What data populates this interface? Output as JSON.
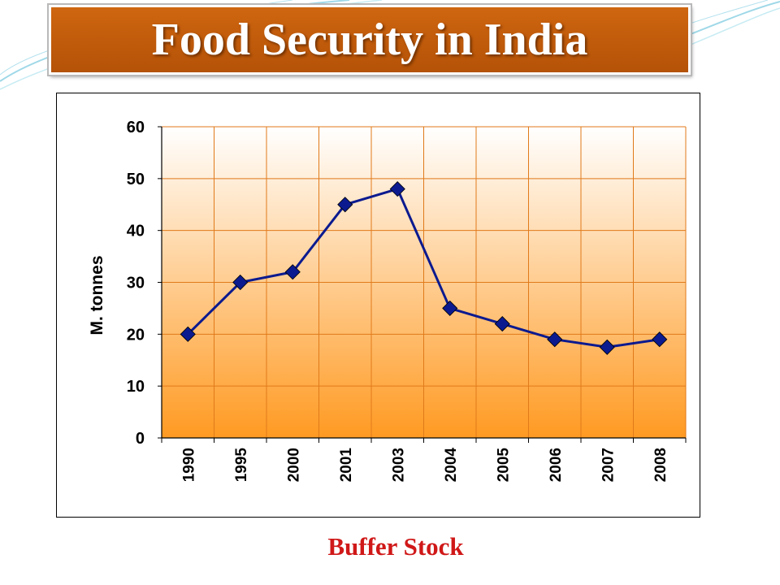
{
  "slide": {
    "title": "Food Security in India",
    "caption": "Buffer Stock",
    "colors": {
      "title_fill": "#c0600d",
      "caption_text": "#d01818",
      "plot_top": "#ffffff",
      "plot_bottom": "#ff9a22",
      "grid": "#e07a1a",
      "series": "#0b1a8f"
    },
    "decor": "teal-swoosh-lines"
  },
  "chart_data": {
    "type": "line",
    "title": "",
    "xlabel": "",
    "ylabel": "M. tonnes",
    "categories": [
      "1990",
      "1995",
      "2000",
      "2001",
      "2003",
      "2004",
      "2005",
      "2006",
      "2007",
      "2008"
    ],
    "series": [
      {
        "values": [
          20,
          30,
          32,
          45,
          48,
          25,
          22,
          19,
          17.5,
          19
        ],
        "marker": "diamond"
      }
    ],
    "ylim": [
      0,
      60
    ],
    "yticks": [
      "0",
      "10",
      "20",
      "30",
      "40",
      "50",
      "60"
    ],
    "grid": true,
    "legend": "none"
  }
}
